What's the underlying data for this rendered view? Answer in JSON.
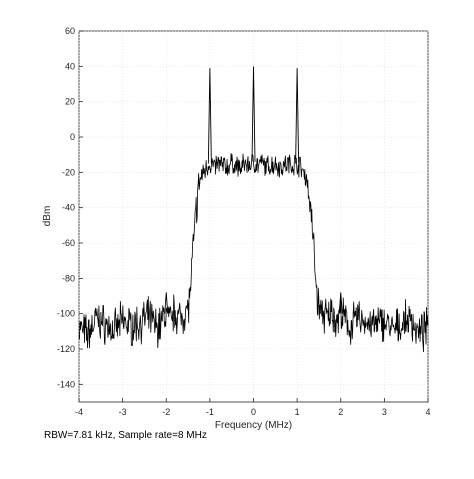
{
  "chart_data": {
    "type": "line",
    "title": "",
    "xlabel": "Frequency (MHz)",
    "ylabel": "dBm",
    "xlim": [
      -4,
      4
    ],
    "ylim": [
      -150,
      60
    ],
    "xticks": [
      -4,
      -3,
      -2,
      -1,
      0,
      1,
      2,
      3,
      4
    ],
    "yticks": [
      -140,
      -120,
      -100,
      -80,
      -60,
      -40,
      -20,
      0,
      20,
      40,
      60
    ],
    "grid": true,
    "legend": "none",
    "line_color": "#000000",
    "series": [
      {
        "x": [
          -4.0,
          -3.8,
          -3.6,
          -3.4,
          -3.2,
          -3.0,
          -2.8,
          -2.6,
          -2.4,
          -2.2,
          -2.0,
          -1.9,
          -1.8,
          -1.7,
          -1.6,
          -1.5,
          -1.45,
          -1.4,
          -1.35,
          -1.3,
          -1.25,
          -1.2,
          -1.15,
          -1.1,
          -1.05,
          -1.0,
          -0.95,
          -0.9,
          -0.8,
          -0.7,
          -0.6,
          -0.5,
          -0.4,
          -0.3,
          -0.2,
          -0.1,
          0.0,
          0.1,
          0.2,
          0.3,
          0.4,
          0.5,
          0.6,
          0.7,
          0.8,
          0.9,
          0.95,
          1.0,
          1.05,
          1.1,
          1.15,
          1.2,
          1.25,
          1.3,
          1.35,
          1.4,
          1.45,
          1.5,
          1.6,
          1.7,
          1.8,
          1.9,
          2.0,
          2.2,
          2.4,
          2.6,
          2.8,
          3.0,
          3.2,
          3.4,
          3.6,
          3.8,
          4.0
        ],
        "y": [
          -108,
          -112,
          -103,
          -106,
          -110,
          -104,
          -107,
          -105,
          -102,
          -108,
          -100,
          -105,
          -98,
          -103,
          -100,
          -97,
          -88,
          -70,
          -52,
          -38,
          -28,
          -22,
          -20,
          -18,
          -16,
          -15,
          -16,
          -17,
          -15,
          -16,
          -17,
          -15,
          -16,
          -18,
          -15,
          -16,
          -14,
          -16,
          -15,
          -17,
          -16,
          -15,
          -17,
          -16,
          -15,
          -16,
          -15,
          -15,
          -16,
          -18,
          -20,
          -22,
          -28,
          -38,
          -52,
          -70,
          -88,
          -97,
          -100,
          -103,
          -98,
          -105,
          -100,
          -108,
          -102,
          -105,
          -107,
          -104,
          -110,
          -106,
          -103,
          -112,
          -108
        ]
      }
    ],
    "spikes": [
      {
        "x": -2.0,
        "y": -88
      },
      {
        "x": -1.0,
        "y": 39
      },
      {
        "x": 0.0,
        "y": 40
      },
      {
        "x": 1.0,
        "y": 39
      },
      {
        "x": 2.0,
        "y": -88
      }
    ]
  },
  "footer_note": "RBW=7.81 kHz, Sample rate=8 MHz"
}
